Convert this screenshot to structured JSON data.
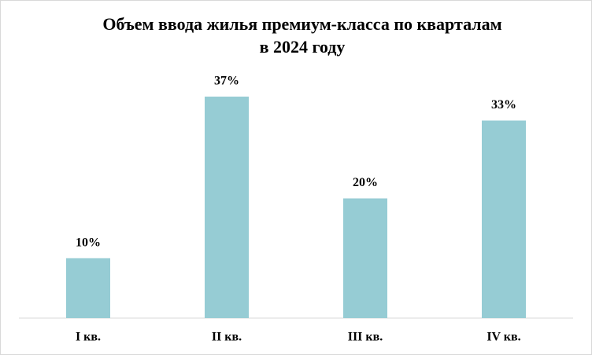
{
  "chart_data": {
    "type": "bar",
    "title": [
      "Объем ввода жилья премиум-класса по кварталам",
      "в 2024 году"
    ],
    "categories": [
      "I кв.",
      "II кв.",
      "III кв.",
      "IV кв."
    ],
    "values": [
      10,
      37,
      20,
      33
    ],
    "value_labels": [
      "10%",
      "37%",
      "20%",
      "33%"
    ],
    "color": "#96ccd4"
  }
}
